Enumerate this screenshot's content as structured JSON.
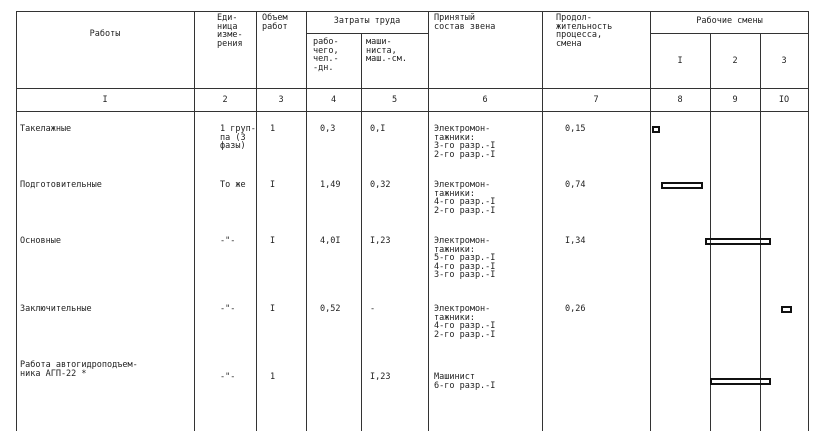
{
  "header": {
    "works": "Работы",
    "unit": "Еди-\nница\nизме-\nрения",
    "volume": "Объем\nработ",
    "labor": "Затраты труда",
    "labor_worker": "рабо-\nчего,\nчел.-\n-дн.",
    "labor_machinist": "маши-\nниста,\nмаш.-см.",
    "crew": "Принятый\nсостав звена",
    "duration": "Продол-\nжительность\nпроцесса,\nсмена",
    "shifts": "Рабочие смены",
    "shift_labels": [
      "I",
      "2",
      "3"
    ]
  },
  "column_numbers": [
    "I",
    "2",
    "3",
    "4",
    "5",
    "6",
    "7",
    "8",
    "9",
    "IO"
  ],
  "rows": [
    {
      "work": "Такелажные",
      "unit": "1 груп-\nпа (3\nфазы)",
      "volume": "1",
      "worker": "0,3",
      "machinist": "0,I",
      "crew": "Электромон-\nтажники:\n3-го разр.-I\n2-го разр.-I",
      "duration": "0,15",
      "bar": {
        "start": 0,
        "end": 0.15
      }
    },
    {
      "work": "Подготовительные",
      "unit": "То же",
      "volume": "I",
      "worker": "1,49",
      "machinist": "0,32",
      "crew": "Электромон-\nтажники:\n4-го разр.-I\n2-го разр.-I",
      "duration": "0,74",
      "bar": {
        "start": 0.15,
        "end": 0.89
      }
    },
    {
      "work": "Основные",
      "unit": "-\"-",
      "volume": "I",
      "worker": "4,0I",
      "machinist": "I,23",
      "crew": "Электромон-\nтажники:\n5-го разр.-I\n4-го разр.-I\n3-го разр.-I",
      "duration": "I,34",
      "bar": {
        "start": 0.89,
        "end": 2.23
      }
    },
    {
      "work": "Заключительные",
      "unit": "-\"-",
      "volume": "I",
      "worker": "0,52",
      "machinist": "-",
      "crew": "Электромон-\nтажники:\n4-го разр.-I\n2-го разр.-I",
      "duration": "0,26",
      "bar": {
        "start": 2.4,
        "end": 2.66
      }
    },
    {
      "work": "Работа автогидроподъем-\nника АГП-22 *",
      "unit": "-\"-",
      "volume": "1",
      "worker": "",
      "machinist": "I,23",
      "crew": "Машинист\n6-го разр.-I",
      "duration": "",
      "bar": {
        "start": 0.96,
        "end": 2.23
      }
    }
  ]
}
